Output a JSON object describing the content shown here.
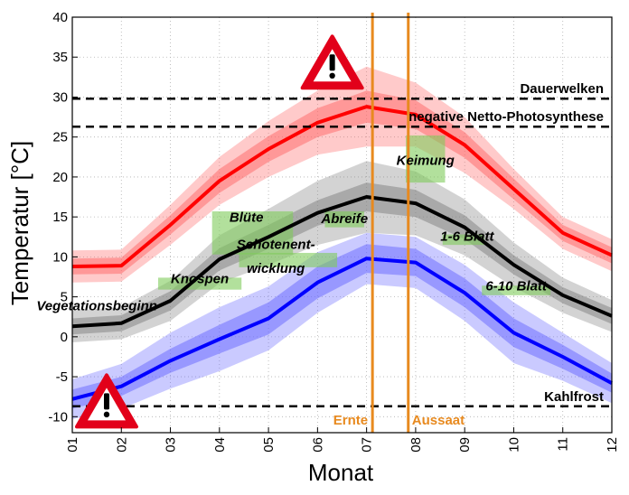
{
  "chart_data": {
    "type": "line",
    "xlabel": "Monat",
    "ylabel": "Temperatur [°C]",
    "x_ticks": [
      "01",
      "02",
      "03",
      "04",
      "05",
      "06",
      "07",
      "08",
      "09",
      "10",
      "11",
      "12"
    ],
    "ylim": [
      -12,
      40
    ],
    "y_ticks": [
      -10,
      -5,
      0,
      5,
      10,
      15,
      20,
      25,
      30,
      35,
      40
    ],
    "grid": true,
    "series": [
      {
        "name": "",
        "color": "#ff0000",
        "band_color": "#ff6666",
        "values": [
          8.8,
          8.9,
          14.0,
          19.5,
          23.5,
          26.8,
          28.8,
          27.8,
          24.0,
          18.5,
          13.0,
          10.2
        ],
        "inner_band": [
          1.0,
          1.0,
          1.2,
          1.5,
          1.6,
          1.8,
          2.0,
          1.8,
          1.6,
          1.3,
          1.0,
          1.0
        ],
        "outer_band": [
          2.0,
          2.0,
          2.5,
          3.0,
          3.5,
          4.0,
          5.0,
          4.0,
          3.5,
          2.5,
          2.0,
          2.0
        ]
      },
      {
        "name": "",
        "color": "#000000",
        "band_color": "#808080",
        "values": [
          1.3,
          1.7,
          4.5,
          9.7,
          12.5,
          15.5,
          17.5,
          16.7,
          13.7,
          9.0,
          5.2,
          2.6
        ],
        "inner_band": [
          1.0,
          1.0,
          1.2,
          1.4,
          1.5,
          1.6,
          1.8,
          1.7,
          1.5,
          1.2,
          1.0,
          1.0
        ],
        "outer_band": [
          2.0,
          2.0,
          2.5,
          3.0,
          3.5,
          4.0,
          4.5,
          4.0,
          3.5,
          2.8,
          2.2,
          2.0
        ]
      },
      {
        "name": "",
        "color": "#0000ff",
        "band_color": "#6666ff",
        "values": [
          -7.8,
          -6.2,
          -3.0,
          -0.3,
          2.3,
          6.8,
          9.8,
          9.3,
          5.5,
          0.5,
          -2.5,
          -5.8
        ],
        "inner_band": [
          1.2,
          1.2,
          1.5,
          1.8,
          2.0,
          2.0,
          1.8,
          1.7,
          1.8,
          1.8,
          1.5,
          1.2
        ],
        "outer_band": [
          2.5,
          2.8,
          3.5,
          4.0,
          4.0,
          3.8,
          3.2,
          3.2,
          3.5,
          3.8,
          3.0,
          2.5
        ]
      }
    ],
    "reference_lines": [
      {
        "label": "Dauerwelken",
        "y": 29.8
      },
      {
        "label": "negative Netto-Photosynthese",
        "y": 26.3
      },
      {
        "label": "Kahlfrost",
        "y": -8.7
      }
    ],
    "vertical_lines": [
      {
        "label": "Ernte",
        "x": 7.12
      },
      {
        "label": "Aussaat",
        "x": 7.85
      }
    ],
    "phases": [
      {
        "label": "Vegetationsbeginn",
        "x": 1.5,
        "y": 3.3,
        "box": null
      },
      {
        "label": "Knospen",
        "x": 3.6,
        "y": 6.7,
        "box": [
          2.75,
          4.45,
          5.9,
          7.4
        ]
      },
      {
        "label": "Blüte",
        "x": 4.55,
        "y": 14.4,
        "box": [
          3.85,
          5.5,
          10.3,
          15.7
        ]
      },
      {
        "label": "Schotenent-",
        "x": 5.15,
        "y": 11.0,
        "box": [
          4.4,
          6.4,
          8.7,
          10.5
        ]
      },
      {
        "label": "wicklung",
        "x": 5.15,
        "y": 8.0,
        "box": null
      },
      {
        "label": "Abreife",
        "x": 6.55,
        "y": 14.2,
        "box": [
          6.15,
          6.95,
          13.7,
          15.7
        ]
      },
      {
        "label": "Keimung",
        "x": 8.2,
        "y": 21.5,
        "box": [
          7.8,
          8.6,
          19.3,
          25.2
        ]
      },
      {
        "label": "1-6 Blatt",
        "x": 9.05,
        "y": 12.0,
        "box": [
          8.55,
          9.4,
          11.5,
          12.8
        ]
      },
      {
        "label": "6-10 Blatt",
        "x": 10.05,
        "y": 5.8,
        "box": [
          9.35,
          10.75,
          5.2,
          6.4
        ]
      }
    ],
    "warning_icons": [
      {
        "name": "warning-icon-heat",
        "x": 6.3,
        "y": 34.2
      },
      {
        "name": "warning-icon-frost",
        "x": 1.7,
        "y": -8.2
      }
    ]
  }
}
